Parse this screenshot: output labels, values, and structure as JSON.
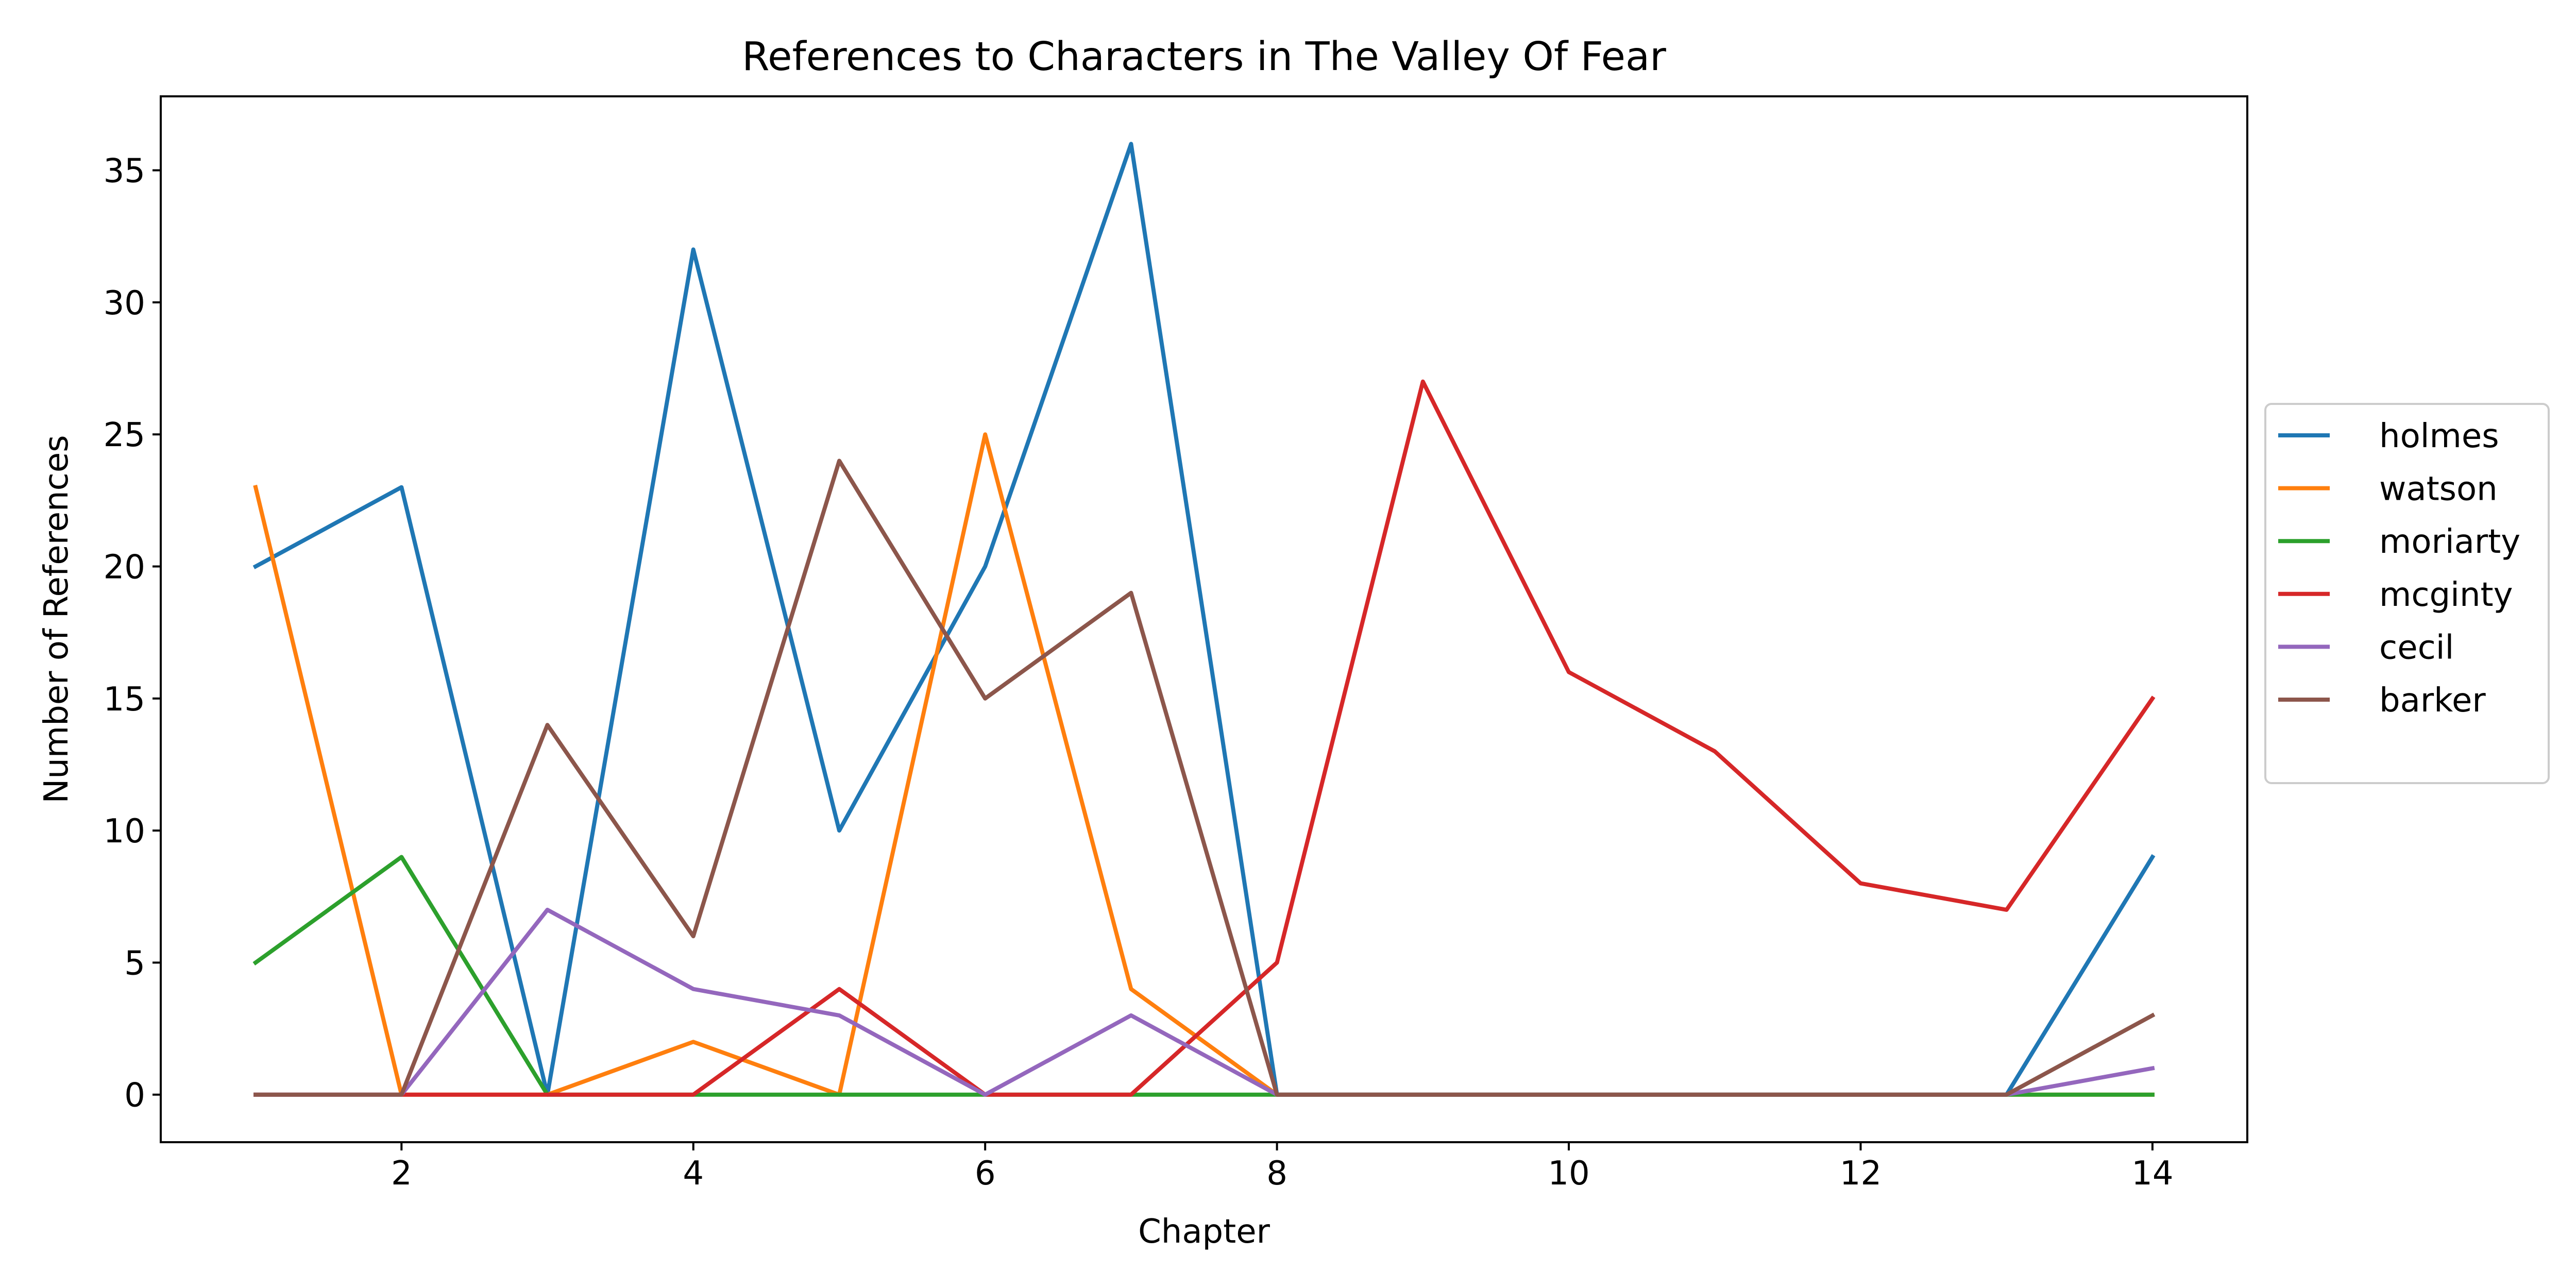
{
  "chart_data": {
    "type": "line",
    "title": "References to Characters in The Valley Of Fear",
    "xlabel": "Chapter",
    "ylabel": "Number of References",
    "x": [
      1,
      2,
      3,
      4,
      5,
      6,
      7,
      8,
      9,
      10,
      11,
      12,
      13,
      14
    ],
    "xlim": [
      0.35,
      14.65
    ],
    "ylim": [
      -1.8,
      37.8
    ],
    "xticks": [
      2,
      4,
      6,
      8,
      10,
      12,
      14
    ],
    "yticks": [
      0,
      5,
      10,
      15,
      20,
      25,
      30,
      35
    ],
    "grid": false,
    "legend_position": "center-right-outside",
    "series": [
      {
        "name": "holmes",
        "color": "#1f77b4",
        "values": [
          20,
          23,
          0,
          32,
          10,
          20,
          36,
          0,
          0,
          0,
          0,
          0,
          0,
          9
        ]
      },
      {
        "name": "watson",
        "color": "#ff7f0e",
        "values": [
          23,
          0,
          0,
          2,
          0,
          25,
          4,
          0,
          0,
          0,
          0,
          0,
          0,
          0
        ]
      },
      {
        "name": "moriarty",
        "color": "#2ca02c",
        "values": [
          5,
          9,
          0,
          0,
          0,
          0,
          0,
          0,
          0,
          0,
          0,
          0,
          0,
          0
        ]
      },
      {
        "name": "mcginty",
        "color": "#d62728",
        "values": [
          0,
          0,
          0,
          0,
          4,
          0,
          0,
          5,
          27,
          16,
          13,
          8,
          7,
          15
        ]
      },
      {
        "name": "cecil",
        "color": "#9467bd",
        "values": [
          0,
          0,
          7,
          4,
          3,
          0,
          3,
          0,
          0,
          0,
          0,
          0,
          0,
          1
        ]
      },
      {
        "name": "barker",
        "color": "#8c564b",
        "values": [
          0,
          0,
          14,
          6,
          24,
          15,
          19,
          0,
          0,
          0,
          0,
          0,
          0,
          3
        ]
      }
    ]
  }
}
